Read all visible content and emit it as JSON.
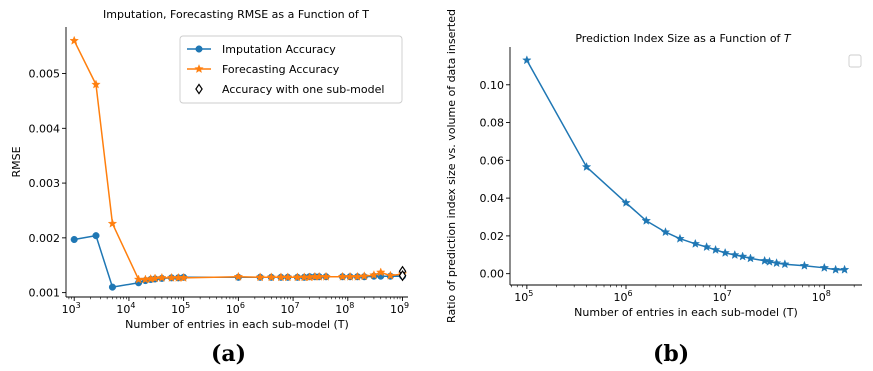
{
  "chart_data": [
    {
      "type": "line",
      "title": "Imputation, Forecasting RMSE as a Function of T",
      "xlabel": "Number of entries in each sub-model (T)",
      "ylabel": "RMSE",
      "xscale": "log",
      "xlim_exp": [
        2.85,
        9.1
      ],
      "ylim": [
        0.00092,
        0.00585
      ],
      "xticks": [
        {
          "exp": 3,
          "label": "10"
        },
        {
          "exp": 4,
          "label": "10"
        },
        {
          "exp": 5,
          "label": "10"
        },
        {
          "exp": 6,
          "label": "10"
        },
        {
          "exp": 7,
          "label": "10"
        },
        {
          "exp": 8,
          "label": "10"
        },
        {
          "exp": 9,
          "label": "10"
        }
      ],
      "yticks": [
        {
          "v": 0.001,
          "label": "0.001"
        },
        {
          "v": 0.002,
          "label": "0.002"
        },
        {
          "v": 0.003,
          "label": "0.003"
        },
        {
          "v": 0.004,
          "label": "0.004"
        },
        {
          "v": 0.005,
          "label": "0.005"
        }
      ],
      "legend_position": "top-right",
      "series": [
        {
          "name": "Imputation Accuracy",
          "color": "#1f77b4",
          "marker": "circle",
          "x": [
            1000,
            2500,
            5000,
            15000,
            20000,
            25000,
            30000,
            40000,
            60000,
            80000,
            100000,
            1000000,
            2500000,
            4000000,
            6000000,
            8000000,
            12000000,
            16000000,
            20000000,
            25000000,
            30000000,
            40000000,
            80000000,
            110000000,
            150000000,
            200000000,
            300000000,
            400000000,
            600000000,
            1000000000
          ],
          "y": [
            0.00197,
            0.00204,
            0.0011,
            0.00118,
            0.00122,
            0.00124,
            0.00125,
            0.00126,
            0.00127,
            0.00127,
            0.00128,
            0.00128,
            0.00128,
            0.00128,
            0.00128,
            0.00128,
            0.00128,
            0.00128,
            0.00129,
            0.00129,
            0.00129,
            0.00129,
            0.00129,
            0.00129,
            0.00129,
            0.00129,
            0.0013,
            0.0013,
            0.0013,
            0.0013
          ]
        },
        {
          "name": "Forecasting Accuracy",
          "color": "#ff7f0e",
          "marker": "star",
          "x": [
            1000,
            2500,
            5000,
            15000,
            20000,
            25000,
            30000,
            40000,
            60000,
            80000,
            100000,
            1000000,
            2500000,
            4000000,
            6000000,
            8000000,
            12000000,
            16000000,
            20000000,
            25000000,
            30000000,
            40000000,
            80000000,
            110000000,
            150000000,
            200000000,
            300000000,
            400000000,
            600000000,
            1000000000
          ],
          "y": [
            0.0056,
            0.0048,
            0.00226,
            0.00124,
            0.00124,
            0.00125,
            0.00126,
            0.00127,
            0.00127,
            0.00127,
            0.00127,
            0.00129,
            0.00128,
            0.00128,
            0.00128,
            0.00128,
            0.00128,
            0.00128,
            0.00128,
            0.00129,
            0.00129,
            0.00129,
            0.00129,
            0.00129,
            0.00129,
            0.0013,
            0.00132,
            0.00137,
            0.00131,
            0.00134
          ]
        },
        {
          "name": "Accuracy with one sub-model",
          "color": "#000000",
          "marker": "diamond-open",
          "x": [
            1000000000,
            1000000000
          ],
          "y": [
            0.00139,
            0.00131
          ]
        }
      ]
    },
    {
      "type": "line",
      "title": "Prediction Index Size as a Function of",
      "title_italic": "T",
      "xlabel": "Number of entries in each sub-model (T)",
      "ylabel": "Ratio of prediction index size vs. volume of data inserted",
      "xscale": "log",
      "xlim_exp": [
        4.83,
        8.38
      ],
      "ylim": [
        -0.006,
        0.12
      ],
      "xticks": [
        {
          "exp": 5,
          "label": "10"
        },
        {
          "exp": 6,
          "label": "10"
        },
        {
          "exp": 7,
          "label": "10"
        },
        {
          "exp": 8,
          "label": "10"
        }
      ],
      "yticks": [
        {
          "v": 0,
          "label": "0.00"
        },
        {
          "v": 0.02,
          "label": "0.02"
        },
        {
          "v": 0.04,
          "label": "0.04"
        },
        {
          "v": 0.06,
          "label": "0.06"
        },
        {
          "v": 0.08,
          "label": "0.08"
        },
        {
          "v": 0.1,
          "label": "0.10"
        }
      ],
      "legend_position": "top-right",
      "series": [
        {
          "color": "#1f77b4",
          "marker": "star",
          "x": [
            100000,
            400000,
            1000000,
            1600000,
            2500000,
            3500000,
            5000000,
            6500000,
            8000000,
            10000000,
            12500000,
            15000000,
            18000000,
            25000000,
            28000000,
            33000000,
            40000000,
            63000000,
            100000000,
            130000000,
            160000000
          ],
          "y": [
            0.113,
            0.0565,
            0.0375,
            0.028,
            0.022,
            0.0185,
            0.0158,
            0.0141,
            0.0126,
            0.011,
            0.0099,
            0.0091,
            0.0081,
            0.0068,
            0.0063,
            0.0056,
            0.005,
            0.0042,
            0.0031,
            0.0021,
            0.0021
          ]
        }
      ]
    }
  ],
  "panels": {
    "a": "(a)",
    "b": "(b)"
  }
}
